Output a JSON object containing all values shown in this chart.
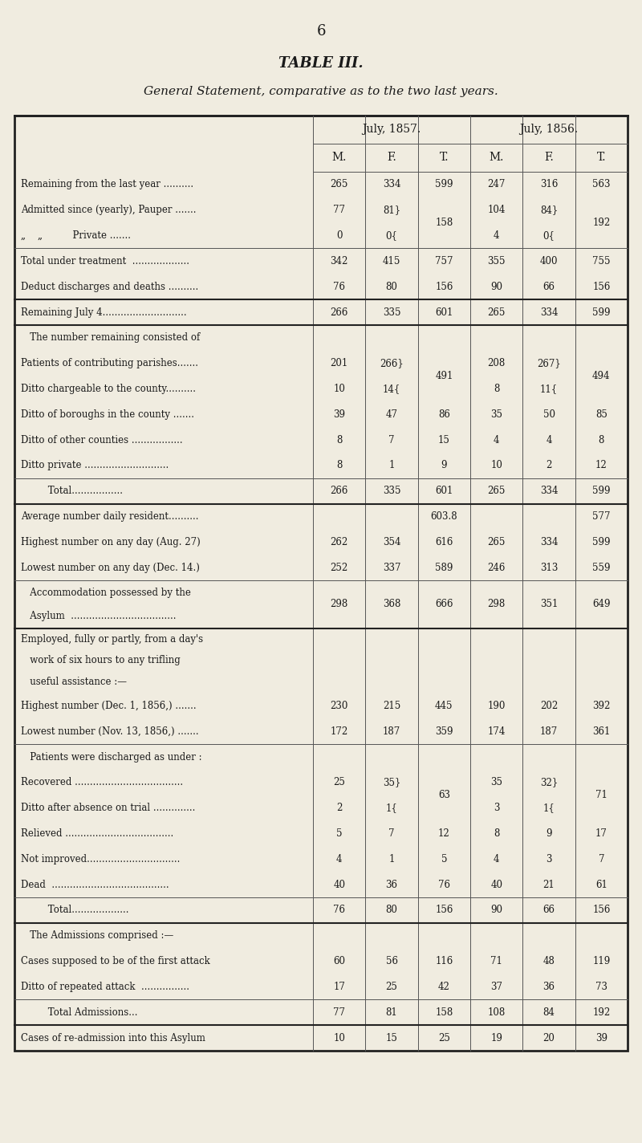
{
  "page_number": "6",
  "title": "TABLE III.",
  "subtitle": "General Statement, comparative as to the two last years.",
  "bg_color": "#f0ece0",
  "col_headers_row1": [
    "",
    "July, 1857.",
    "",
    "",
    "July, 1856.",
    "",
    ""
  ],
  "col_headers_row2": [
    "",
    "M.",
    "F.",
    "T.",
    "M.",
    "F.",
    "T."
  ],
  "rows": [
    {
      "label": "Remaining from the last year ..........",
      "vals": [
        "265",
        "334",
        "599",
        "247",
        "316",
        "563"
      ],
      "indent": 0,
      "bold": false,
      "top_line": false,
      "bottom_line": false,
      "row_span_start": false
    },
    {
      "label": "Admitted since (yearly), Pauper .......",
      "vals": [
        "77",
        "81}",
        "",
        "104",
        "84}",
        ""
      ],
      "indent": 0,
      "bold": false,
      "top_line": false,
      "bottom_line": false,
      "brace_right_1857": "158",
      "brace_right_1856": "192",
      "row_span_start": true
    },
    {
      "label": "„    „          Private .......",
      "vals": [
        "0",
        "0{",
        "",
        "4",
        "0{",
        ""
      ],
      "indent": 0,
      "bold": false,
      "top_line": false,
      "bottom_line": false,
      "row_span_end": true
    },
    {
      "label": "Total under treatment  ...................",
      "vals": [
        "342",
        "415",
        "757",
        "355",
        "400",
        "755"
      ],
      "indent": 0,
      "bold": false,
      "top_line": true,
      "bottom_line": false,
      "row_span_start": false
    },
    {
      "label": "Deduct discharges and deaths ..........",
      "vals": [
        "76",
        "80",
        "156",
        "90",
        "66",
        "156"
      ],
      "indent": 0,
      "bold": false,
      "top_line": false,
      "bottom_line": true
    },
    {
      "label": "Remaining July 4............................",
      "vals": [
        "266",
        "335",
        "601",
        "265",
        "334",
        "599"
      ],
      "indent": 0,
      "bold": false,
      "top_line": false,
      "bottom_line": false
    },
    {
      "label": "   The number remaining consisted of",
      "vals": [
        "",
        "",
        "",
        "",
        "",
        ""
      ],
      "indent": 1,
      "bold": false,
      "top_line": true,
      "bottom_line": false
    },
    {
      "label": "Patients of contributing parishes.......",
      "vals": [
        "201",
        "266}",
        "",
        "208",
        "267}",
        ""
      ],
      "indent": 0,
      "bold": false,
      "top_line": false,
      "bottom_line": false,
      "brace_right_1857": "491",
      "brace_right_1856": "494",
      "row_span_start": true
    },
    {
      "label": "Ditto chargeable to the county..........",
      "vals": [
        "10",
        "14{",
        "",
        "8",
        "11{",
        ""
      ],
      "indent": 0,
      "bold": false,
      "top_line": false,
      "bottom_line": false,
      "row_span_end": true
    },
    {
      "label": "Ditto of boroughs in the county .......",
      "vals": [
        "39",
        "47",
        "86",
        "35",
        "50",
        "85"
      ],
      "indent": 0,
      "bold": false,
      "top_line": false,
      "bottom_line": false
    },
    {
      "label": "Ditto of other counties .................",
      "vals": [
        "8",
        "7",
        "15",
        "4",
        "4",
        "8"
      ],
      "indent": 0,
      "bold": false,
      "top_line": false,
      "bottom_line": false
    },
    {
      "label": "Ditto private ............................",
      "vals": [
        "8",
        "1",
        "9",
        "10",
        "2",
        "12"
      ],
      "indent": 0,
      "bold": false,
      "top_line": false,
      "bottom_line": false
    },
    {
      "label": "         Total.................",
      "vals": [
        "266",
        "335",
        "601",
        "265",
        "334",
        "599"
      ],
      "indent": 2,
      "bold": false,
      "top_line": true,
      "bottom_line": false
    },
    {
      "label": "Average number daily resident..........",
      "vals": [
        "",
        "",
        "603.8",
        "",
        "",
        "577"
      ],
      "indent": 0,
      "bold": false,
      "top_line": true,
      "bottom_line": false
    },
    {
      "label": "Highest number on any day (Aug. 27)",
      "vals": [
        "262",
        "354",
        "616",
        "265",
        "334",
        "599"
      ],
      "indent": 0,
      "bold": false,
      "top_line": false,
      "bottom_line": false
    },
    {
      "label": "Lowest number on any day (Dec. 14.)",
      "vals": [
        "252",
        "337",
        "589",
        "246",
        "313",
        "559"
      ],
      "indent": 0,
      "bold": false,
      "top_line": false,
      "bottom_line": false
    },
    {
      "label": "   Accommodation possessed by the\n   Asylum  ...................................",
      "vals": [
        "298",
        "368",
        "666",
        "298",
        "351",
        "649"
      ],
      "indent": 1,
      "bold": false,
      "top_line": true,
      "bottom_line": false,
      "multiline": true
    },
    {
      "label": "Employed, fully or partly, from a day's\n   work of six hours to any trifling\n   useful assistance :—",
      "vals": [
        "",
        "",
        "",
        "",
        "",
        ""
      ],
      "indent": 0,
      "bold": false,
      "top_line": true,
      "bottom_line": false,
      "multiline": true
    },
    {
      "label": "Highest number (Dec. 1, 1856,) .......",
      "vals": [
        "230",
        "215",
        "445",
        "190",
        "202",
        "392"
      ],
      "indent": 0,
      "bold": false,
      "top_line": false,
      "bottom_line": false
    },
    {
      "label": "Lowest number (Nov. 13, 1856,) .......",
      "vals": [
        "172",
        "187",
        "359",
        "174",
        "187",
        "361"
      ],
      "indent": 0,
      "bold": false,
      "top_line": false,
      "bottom_line": false
    },
    {
      "label": "   Patients were discharged as under :",
      "vals": [
        "",
        "",
        "",
        "",
        "",
        ""
      ],
      "indent": 1,
      "bold": false,
      "top_line": true,
      "bottom_line": false
    },
    {
      "label": "Recovered ....................................",
      "vals": [
        "25",
        "35}",
        "",
        "35",
        "32}",
        ""
      ],
      "indent": 0,
      "bold": false,
      "top_line": false,
      "bottom_line": false,
      "brace_right_1857": "63",
      "brace_right_1856": "71",
      "row_span_start": true
    },
    {
      "label": "Ditto after absence on trial ..............",
      "vals": [
        "2",
        "1{",
        "",
        "3",
        "1{",
        ""
      ],
      "indent": 0,
      "bold": false,
      "top_line": false,
      "bottom_line": false,
      "row_span_end": true
    },
    {
      "label": "Relieved ....................................",
      "vals": [
        "5",
        "7",
        "12",
        "8",
        "9",
        "17"
      ],
      "indent": 0,
      "bold": false,
      "top_line": false,
      "bottom_line": false
    },
    {
      "label": "Not improved...............................",
      "vals": [
        "4",
        "1",
        "5",
        "4",
        "3",
        "7"
      ],
      "indent": 0,
      "bold": false,
      "top_line": false,
      "bottom_line": false
    },
    {
      "label": "Dead  .......................................",
      "vals": [
        "40",
        "36",
        "76",
        "40",
        "21",
        "61"
      ],
      "indent": 0,
      "bold": false,
      "top_line": false,
      "bottom_line": false
    },
    {
      "label": "         Total...................",
      "vals": [
        "76",
        "80",
        "156",
        "90",
        "66",
        "156"
      ],
      "indent": 2,
      "bold": false,
      "top_line": true,
      "bottom_line": false
    },
    {
      "label": "   The Admissions comprised :—",
      "vals": [
        "",
        "",
        "",
        "",
        "",
        ""
      ],
      "indent": 1,
      "bold": false,
      "top_line": true,
      "bottom_line": false
    },
    {
      "label": "Cases supposed to be of the first attack",
      "vals": [
        "60",
        "56",
        "116",
        "71",
        "48",
        "119"
      ],
      "indent": 0,
      "bold": false,
      "top_line": false,
      "bottom_line": false
    },
    {
      "label": "Ditto of repeated attack  ................",
      "vals": [
        "17",
        "25",
        "42",
        "37",
        "36",
        "73"
      ],
      "indent": 0,
      "bold": false,
      "top_line": false,
      "bottom_line": false
    },
    {
      "label": "         Total Admissions...",
      "vals": [
        "77",
        "81",
        "158",
        "108",
        "84",
        "192"
      ],
      "indent": 2,
      "bold": false,
      "top_line": true,
      "bottom_line": false
    },
    {
      "label": "Cases of re-admission into this Asylum",
      "vals": [
        "10",
        "15",
        "25",
        "19",
        "20",
        "39"
      ],
      "indent": 0,
      "bold": false,
      "top_line": true,
      "bottom_line": false
    }
  ]
}
